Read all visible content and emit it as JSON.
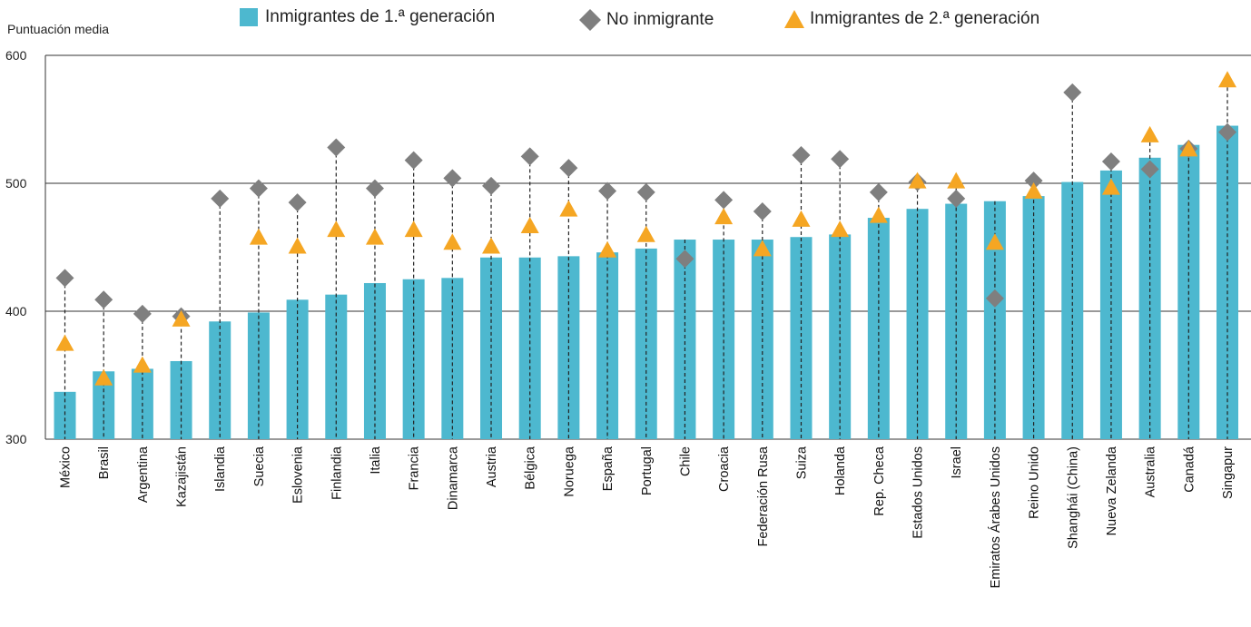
{
  "chart_data": {
    "type": "bar",
    "ylabel": "Puntuación media",
    "ylim": [
      300,
      600
    ],
    "yticks": [
      300,
      400,
      500,
      600
    ],
    "grid": true,
    "legend_position": "top",
    "categories": [
      "México",
      "Brasil",
      "Argentina",
      "Kazajistán",
      "Islandia",
      "Suecia",
      "Eslovenia",
      "Finlandia",
      "Italia",
      "Francia",
      "Dinamarca",
      "Austria",
      "Bélgica",
      "Noruega",
      "España",
      "Portugal",
      "Chile",
      "Croacia",
      "Federación Rusa",
      "Suiza",
      "Holanda",
      "Rep. Checa",
      "Estados Unidos",
      "Israel",
      "Emiratos Árabes Unidos",
      "Reino Unido",
      "Shanghái (China)",
      "Nueva Zelanda",
      "Australia",
      "Canadá",
      "Singapur"
    ],
    "series": [
      {
        "name": "Inmigrantes de 1.ª generación",
        "marker": "bar",
        "color": "#4db8cf",
        "values": [
          337,
          353,
          355,
          361,
          392,
          399,
          409,
          413,
          422,
          425,
          426,
          442,
          442,
          443,
          446,
          449,
          456,
          456,
          456,
          458,
          460,
          473,
          480,
          484,
          486,
          490,
          501,
          510,
          520,
          530,
          545
        ]
      },
      {
        "name": "No inmigrante",
        "marker": "diamond",
        "color": "#7f7f7f",
        "values": [
          426,
          409,
          398,
          396,
          488,
          496,
          485,
          528,
          496,
          518,
          504,
          498,
          521,
          512,
          494,
          493,
          441,
          487,
          478,
          522,
          519,
          493,
          501,
          488,
          410,
          502,
          571,
          517,
          511,
          527,
          540
        ]
      },
      {
        "name": "Inmigrantes de 2.ª generación",
        "marker": "triangle",
        "color": "#f5a623",
        "values": [
          374,
          347,
          357,
          393,
          null,
          457,
          450,
          463,
          457,
          463,
          453,
          450,
          466,
          479,
          447,
          459,
          null,
          473,
          448,
          471,
          463,
          474,
          501,
          501,
          453,
          493,
          null,
          496,
          537,
          526,
          580
        ]
      }
    ]
  }
}
